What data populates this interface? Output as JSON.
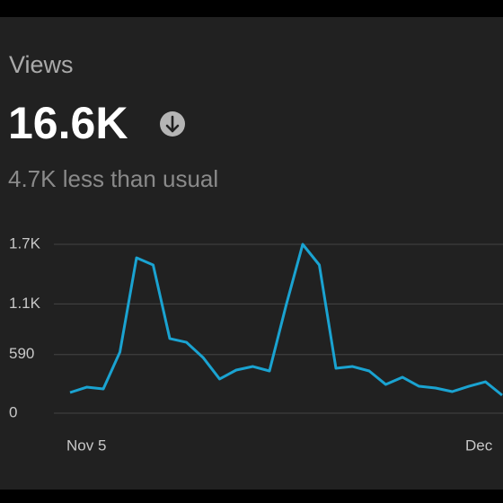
{
  "header": {
    "title": "Views",
    "value": "16.6K",
    "subtitle": "4.7K less than usual"
  },
  "chart_data": {
    "type": "line",
    "categories": [
      "Nov 5",
      null,
      null,
      null,
      null,
      null,
      null,
      null,
      null,
      null,
      null,
      null,
      null,
      null,
      null,
      null,
      null,
      null,
      null,
      null,
      null,
      null,
      null,
      null,
      "Dec",
      null,
      null
    ],
    "series": [
      {
        "color": "#1aa3d1",
        "values": [
          208,
          262,
          244,
          615,
          1564,
          1492,
          751,
          714,
          561,
          344,
          434,
          470,
          425,
          1085,
          1700,
          1492,
          452,
          470,
          425,
          289,
          362,
          271,
          253,
          217,
          271,
          316,
          181
        ]
      }
    ],
    "ylim": [
      0,
      1700
    ],
    "yticks": [
      0,
      {
        "value": 590,
        "label": "590"
      },
      {
        "value": 1100,
        "label": "1.1K"
      },
      {
        "value": 1700,
        "label": "1.7K"
      }
    ],
    "grid": true
  }
}
